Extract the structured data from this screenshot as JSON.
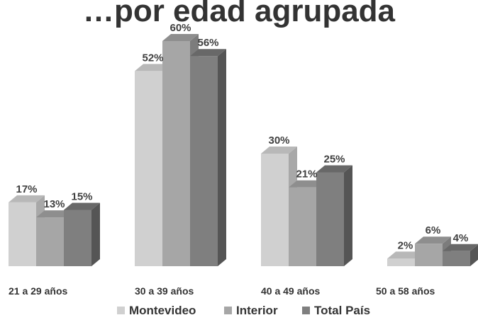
{
  "chart_data": {
    "type": "bar",
    "title": "…por edad agrupada",
    "categories": [
      "21 a 29 años",
      "30 a 39 años",
      "40 a 49 años",
      "50 a 58 años"
    ],
    "series": [
      {
        "name": "Montevideo",
        "values": [
          17,
          52,
          30,
          2
        ],
        "labels": [
          "17%",
          "52%",
          "30%",
          "2%"
        ]
      },
      {
        "name": "Interior",
        "values": [
          13,
          60,
          21,
          6
        ],
        "labels": [
          "13%",
          "60%",
          "21%",
          "6%"
        ]
      },
      {
        "name": "Total País",
        "values": [
          15,
          56,
          25,
          4
        ],
        "labels": [
          "15%",
          "56%",
          "25%",
          "4%"
        ]
      }
    ],
    "unit": "%",
    "ylim": [
      0,
      60
    ],
    "grid": false,
    "three_d": true,
    "legend_position": "bottom",
    "colors": {
      "Montevideo": {
        "front": "#d0d0d0",
        "top": "#b8b8b8",
        "side": "#a8a8a8"
      },
      "Interior": {
        "front": "#a6a6a6",
        "top": "#8e8e8e",
        "side": "#7c7c7c"
      },
      "Total País": {
        "front": "#7f7f7f",
        "top": "#686868",
        "side": "#555555"
      }
    }
  }
}
